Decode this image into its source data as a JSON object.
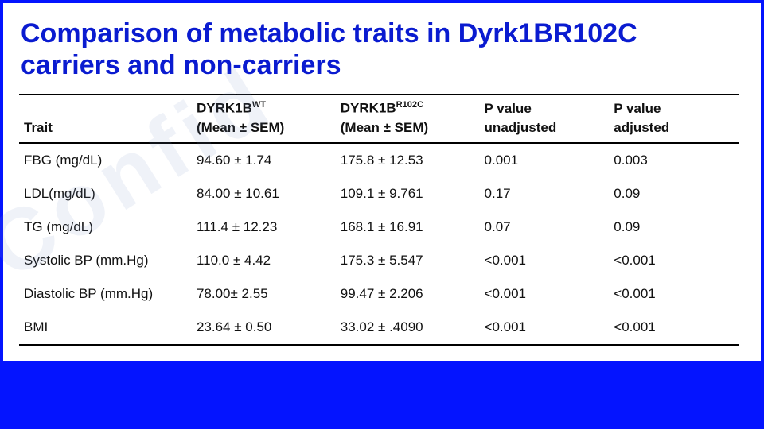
{
  "title": "Comparison of metabolic traits in Dyrk1BR102C carriers and non-carriers",
  "colors": {
    "page_bg": "#0414ff",
    "card_bg": "#ffffff",
    "title_color": "#0a1bd0",
    "rule_color": "#000000",
    "text_color": "#111111",
    "watermark_color": "rgba(120,150,200,0.12)"
  },
  "typography": {
    "title_fontsize": 34,
    "title_weight": 800,
    "table_fontsize": 17
  },
  "watermark_text": "Confid",
  "table": {
    "type": "table",
    "columns": [
      {
        "key": "trait",
        "header_top": "",
        "header_bottom": "Trait",
        "width_pct": 24,
        "align": "left"
      },
      {
        "key": "wt",
        "header_top_html": "DYRK1B<sup>WT</sup>",
        "header_bottom": "(Mean ± SEM)",
        "width_pct": 20,
        "align": "left"
      },
      {
        "key": "mut",
        "header_top_html": "DYRK1B<sup>R102C</sup>",
        "header_bottom": "(Mean ± SEM)",
        "width_pct": 20,
        "align": "left"
      },
      {
        "key": "p_unadj",
        "header_top": "P value",
        "header_bottom": "unadjusted",
        "width_pct": 18,
        "align": "left"
      },
      {
        "key": "p_adj",
        "header_top": "P value",
        "header_bottom": "adjusted",
        "width_pct": 18,
        "align": "left"
      }
    ],
    "rows": [
      {
        "trait": "FBG (mg/dL)",
        "wt": "94.60 ± 1.74",
        "mut": "175.8 ± 12.53",
        "p_unadj": "0.001",
        "p_adj": "0.003"
      },
      {
        "trait": "LDL(mg/dL)",
        "wt": "84.00 ± 10.61",
        "mut": "109.1 ± 9.761",
        "p_unadj": "0.17",
        "p_adj": "0.09"
      },
      {
        "trait": "TG (mg/dL)",
        "wt": "111.4 ± 12.23",
        "mut": "168.1 ± 16.91",
        "p_unadj": "0.07",
        "p_adj": "0.09"
      },
      {
        "trait": "Systolic BP (mm.Hg)",
        "wt": "110.0 ± 4.42",
        "mut": "175.3 ± 5.547",
        "p_unadj": "<0.001",
        "p_adj": "<0.001"
      },
      {
        "trait": "Diastolic BP (mm.Hg)",
        "wt": "78.00± 2.55",
        "mut": "99.47 ± 2.206",
        "p_unadj": "<0.001",
        "p_adj": "<0.001"
      },
      {
        "trait": "BMI",
        "wt": "23.64 ± 0.50",
        "mut": "33.02 ± .4090",
        "p_unadj": "<0.001",
        "p_adj": "<0.001"
      }
    ]
  }
}
